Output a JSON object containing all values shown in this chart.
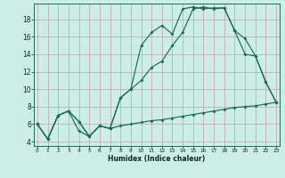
{
  "xlabel": "Humidex (Indice chaleur)",
  "bg_color": "#cceee8",
  "grid_color": "#c8a8b8",
  "line_color": "#1a6b5a",
  "xlim": [
    -0.3,
    23.3
  ],
  "ylim": [
    3.5,
    19.8
  ],
  "yticks": [
    4,
    6,
    8,
    10,
    12,
    14,
    16,
    18
  ],
  "xticks": [
    0,
    1,
    2,
    3,
    4,
    5,
    6,
    7,
    8,
    9,
    10,
    11,
    12,
    13,
    14,
    15,
    16,
    17,
    18,
    19,
    20,
    21,
    22,
    23
  ],
  "line1_x": [
    0,
    1,
    2,
    3,
    4,
    5,
    6,
    7,
    8,
    9,
    10,
    11,
    12,
    13,
    14,
    15,
    16,
    17,
    18,
    19,
    20,
    21,
    22,
    23
  ],
  "line1_y": [
    6.0,
    4.3,
    7.0,
    7.5,
    5.2,
    4.6,
    5.8,
    5.5,
    5.8,
    6.0,
    6.2,
    6.4,
    6.5,
    6.7,
    6.9,
    7.1,
    7.3,
    7.5,
    7.7,
    7.9,
    8.0,
    8.1,
    8.3,
    8.5
  ],
  "line2_x": [
    0,
    1,
    2,
    3,
    4,
    5,
    6,
    7,
    8,
    9,
    10,
    11,
    12,
    13,
    14,
    15,
    16,
    17,
    18,
    19,
    20,
    21,
    22,
    23
  ],
  "line2_y": [
    6.0,
    4.3,
    7.0,
    7.5,
    6.3,
    4.6,
    5.8,
    5.5,
    9.0,
    10.0,
    11.0,
    12.5,
    13.2,
    15.0,
    16.5,
    19.2,
    19.4,
    19.2,
    19.3,
    16.7,
    15.8,
    13.8,
    10.8,
    8.5
  ],
  "line3_x": [
    0,
    1,
    2,
    3,
    4,
    5,
    6,
    7,
    8,
    9,
    10,
    11,
    12,
    13,
    14,
    15,
    16,
    17,
    18,
    19,
    20,
    21,
    22,
    23
  ],
  "line3_y": [
    6.0,
    4.3,
    7.0,
    7.5,
    6.3,
    4.6,
    5.8,
    5.5,
    9.0,
    10.0,
    15.0,
    16.5,
    17.3,
    16.3,
    19.2,
    19.4,
    19.2,
    19.3,
    19.3,
    16.7,
    14.0,
    13.8,
    10.8,
    8.5
  ]
}
